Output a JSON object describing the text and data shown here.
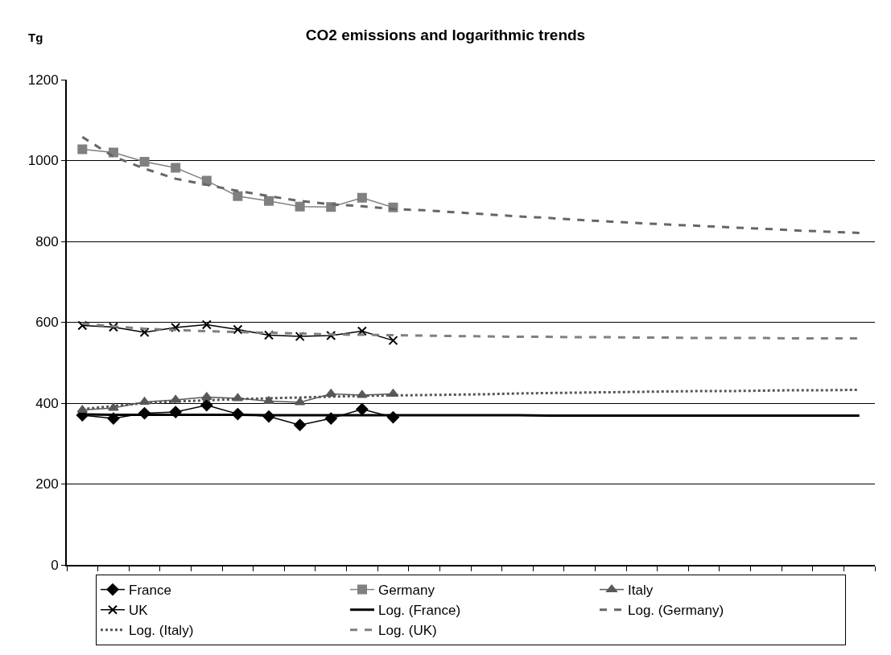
{
  "chart_data": {
    "type": "line",
    "title": "CO2 emissions and logarithmic trends",
    "ylabel": "Tg",
    "categories": [
      null,
      null,
      null,
      null,
      null,
      null,
      null,
      null,
      null,
      null,
      null,
      null,
      null,
      null,
      null,
      null,
      null,
      null,
      null,
      null,
      null,
      null,
      null,
      null,
      null,
      null
    ],
    "ylim": [
      0,
      1200
    ],
    "yticks": [
      0,
      200,
      400,
      600,
      800,
      1000,
      1200
    ],
    "grid": "y",
    "legend": "bottom",
    "series": [
      {
        "name": "France",
        "color": "#000000",
        "marker": "diamond",
        "line_style": "solid",
        "values": [
          370,
          362,
          375,
          378,
          395,
          373,
          367,
          346,
          362,
          385,
          365,
          null,
          null,
          null,
          null,
          null,
          null,
          null,
          null,
          null,
          null,
          null,
          null,
          null,
          null,
          null
        ]
      },
      {
        "name": "Germany",
        "color": "#808080",
        "marker": "square",
        "line_style": "solid",
        "values": [
          1028,
          1020,
          997,
          982,
          950,
          912,
          900,
          886,
          885,
          908,
          884,
          null,
          null,
          null,
          null,
          null,
          null,
          null,
          null,
          null,
          null,
          null,
          null,
          null,
          null,
          null
        ]
      },
      {
        "name": "Italy",
        "color": "#595959",
        "marker": "triangle",
        "line_style": "solid",
        "values": [
          383,
          388,
          403,
          408,
          415,
          412,
          405,
          402,
          423,
          420,
          423,
          null,
          null,
          null,
          null,
          null,
          null,
          null,
          null,
          null,
          null,
          null,
          null,
          null,
          null,
          null
        ]
      },
      {
        "name": "UK",
        "color": "#000000",
        "marker": "cross",
        "line_style": "solid",
        "values": [
          592,
          588,
          575,
          587,
          594,
          582,
          568,
          565,
          567,
          578,
          555,
          null,
          null,
          null,
          null,
          null,
          null,
          null,
          null,
          null,
          null,
          null,
          null,
          null,
          null,
          null
        ]
      },
      {
        "name": "Log. (France)",
        "color": "#000000",
        "marker": "none",
        "line_style": "solid",
        "values": [
          372,
          371,
          371,
          371,
          371,
          371,
          370,
          370,
          370,
          370,
          370,
          370,
          370,
          370,
          370,
          369,
          369,
          369,
          369,
          369,
          369,
          369,
          369,
          369,
          369,
          369
        ]
      },
      {
        "name": "Log. (Germany)",
        "color": "#666666",
        "marker": "none",
        "line_style": "dashed",
        "values": [
          1058,
          1010,
          980,
          955,
          940,
          925,
          912,
          900,
          892,
          887,
          880,
          877,
          872,
          867,
          862,
          858,
          853,
          849,
          845,
          841,
          838,
          834,
          831,
          827,
          824,
          821
        ]
      },
      {
        "name": "Log. (Italy)",
        "color": "#555555",
        "marker": "none",
        "line_style": "dotted",
        "values": [
          385,
          393,
          400,
          404,
          407,
          410,
          412,
          414,
          416,
          418,
          419,
          420,
          421,
          422,
          424,
          425,
          426,
          427,
          428,
          429,
          430,
          430,
          431,
          432,
          432,
          433
        ]
      },
      {
        "name": "Log. (UK)",
        "color": "#808080",
        "marker": "none",
        "line_style": "dashed",
        "values": [
          597,
          590,
          584,
          581,
          578,
          576,
          574,
          572,
          570,
          569,
          568,
          567,
          566,
          565,
          564,
          564,
          563,
          563,
          562,
          562,
          561,
          561,
          561,
          560,
          560,
          560
        ]
      }
    ]
  }
}
